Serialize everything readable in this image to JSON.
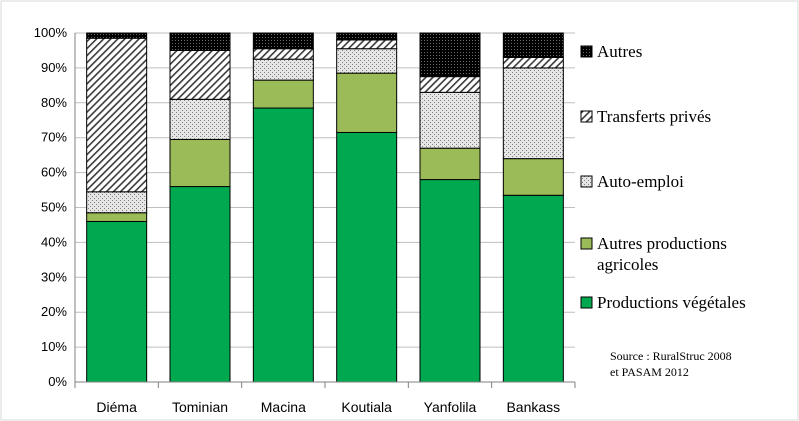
{
  "chart_data": {
    "type": "bar",
    "stacked": true,
    "categories": [
      "Diéma",
      "Tominian",
      "Macina",
      "Koutiala",
      "Yanfolila",
      "Bankass"
    ],
    "series": [
      {
        "name": "Productions végétales",
        "color": "#00a84f",
        "pattern": "solid",
        "values": [
          46,
          56,
          78.5,
          71.5,
          58,
          53.5
        ]
      },
      {
        "name": "Autres productions agricoles",
        "color": "#9bbb59",
        "pattern": "solid",
        "values": [
          2.5,
          13.5,
          8,
          17,
          9,
          10.5
        ]
      },
      {
        "name": "Auto-emploi",
        "color": "#d9d9d9",
        "pattern": "dotted",
        "values": [
          6,
          11.5,
          6,
          7,
          16,
          26
        ]
      },
      {
        "name": "Transferts privés",
        "color": "#ffffff",
        "pattern": "diagonal",
        "values": [
          44,
          14,
          3,
          2.5,
          4.5,
          3
        ]
      },
      {
        "name": "Autres",
        "color": "#000000",
        "pattern": "dense-dots",
        "values": [
          1.5,
          5,
          4.5,
          2,
          12.5,
          7
        ]
      }
    ],
    "yticks": [
      "0%",
      "10%",
      "20%",
      "30%",
      "40%",
      "50%",
      "60%",
      "70%",
      "80%",
      "90%",
      "100%"
    ],
    "ylim": [
      0,
      100
    ],
    "grid": true,
    "legend_position": "right",
    "legend_order": [
      "Autres",
      "Transferts privés",
      "Auto-emploi",
      "Autres productions agricoles",
      "Productions végétales"
    ],
    "annotation": [
      "Source : RuralStruc 2008",
      "et PASAM 2012"
    ]
  }
}
